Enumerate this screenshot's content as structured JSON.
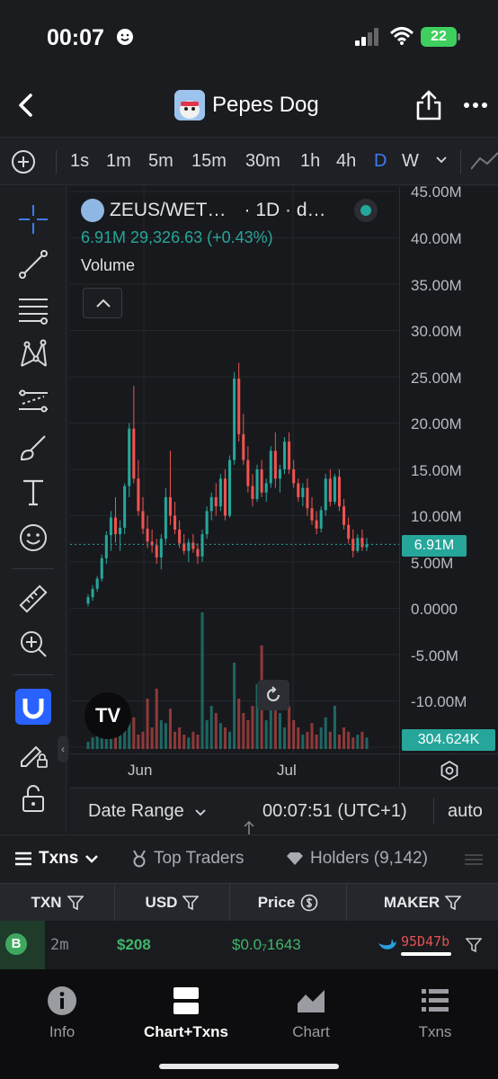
{
  "status_bar": {
    "time": "00:07",
    "battery": "22"
  },
  "nav": {
    "title": "Pepes Dog"
  },
  "timeframes": [
    "1s",
    "1m",
    "5m",
    "15m",
    "30m",
    "1h",
    "4h",
    "D",
    "W"
  ],
  "active_timeframe": "D",
  "legend": {
    "pair": "ZEUS/WET…",
    "resolution": "· 1D · d…",
    "stats": "6.91M  29,326.63 (+0.43%)",
    "indicator": "Volume"
  },
  "y_axis": {
    "ticks": [
      "45.00M",
      "40.00M",
      "35.00M",
      "30.00M",
      "25.00M",
      "20.00M",
      "15.00M",
      "10.00M",
      "5.00M",
      "0.0000",
      "-5.00M",
      "-10.00M"
    ],
    "current_price_label": "6.91M",
    "volume_label": "304.624K"
  },
  "x_axis": {
    "ticks": [
      "Jun",
      "Jul"
    ]
  },
  "chart_data": {
    "type": "candlestick",
    "y_unit": "market value",
    "ylim": [
      -15000000,
      45000000
    ],
    "current_value": 6910000,
    "candles_ohlc_millions": [
      [
        0.5,
        1.5,
        0.2,
        1.2
      ],
      [
        1.2,
        2.5,
        0.8,
        2.1
      ],
      [
        2.1,
        3.5,
        1.8,
        3.2
      ],
      [
        3.2,
        5.8,
        2.9,
        5.4
      ],
      [
        5.4,
        8.3,
        4.8,
        7.9
      ],
      [
        7.9,
        10.5,
        6.2,
        9.8
      ],
      [
        9.8,
        12.0,
        7.1,
        8.0
      ],
      [
        8.0,
        9.5,
        6.2,
        8.7
      ],
      [
        8.7,
        13.5,
        8.0,
        13.2
      ],
      [
        13.2,
        20.0,
        12.0,
        19.4
      ],
      [
        19.4,
        24.0,
        13.5,
        14.0
      ],
      [
        14.0,
        16.0,
        10.0,
        10.5
      ],
      [
        10.5,
        12.0,
        8.0,
        8.6
      ],
      [
        8.6,
        10.0,
        6.5,
        7.2
      ],
      [
        7.2,
        8.5,
        6.0,
        6.8
      ],
      [
        6.8,
        7.5,
        4.8,
        5.5
      ],
      [
        5.5,
        8.0,
        4.2,
        7.5
      ],
      [
        7.5,
        13.0,
        7.0,
        12.0
      ],
      [
        12.0,
        17.0,
        9.0,
        10.0
      ],
      [
        10.0,
        11.5,
        8.0,
        8.5
      ],
      [
        8.5,
        9.5,
        6.5,
        7.0
      ],
      [
        7.0,
        8.0,
        5.8,
        6.2
      ],
      [
        6.2,
        7.5,
        5.0,
        7.1
      ],
      [
        7.1,
        8.0,
        6.0,
        6.4
      ],
      [
        6.4,
        7.0,
        4.8,
        5.6
      ],
      [
        5.6,
        8.5,
        5.0,
        8.0
      ],
      [
        8.0,
        11.0,
        7.5,
        10.5
      ],
      [
        10.5,
        12.5,
        9.5,
        12.0
      ],
      [
        12.0,
        13.5,
        10.0,
        11.0
      ],
      [
        11.0,
        14.5,
        10.5,
        14.0
      ],
      [
        14.0,
        15.0,
        9.5,
        10.0
      ],
      [
        10.0,
        16.5,
        9.8,
        16.0
      ],
      [
        16.0,
        25.5,
        15.5,
        24.8
      ],
      [
        24.8,
        26.5,
        18.0,
        18.8
      ],
      [
        18.8,
        21.0,
        15.5,
        16.0
      ],
      [
        16.0,
        17.5,
        12.5,
        13.2
      ],
      [
        13.2,
        14.5,
        11.0,
        11.8
      ],
      [
        11.8,
        15.5,
        11.5,
        15.0
      ],
      [
        15.0,
        16.0,
        12.0,
        12.5
      ],
      [
        12.5,
        14.0,
        11.5,
        13.5
      ],
      [
        13.5,
        17.5,
        13.0,
        17.0
      ],
      [
        17.0,
        19.0,
        13.0,
        14.0
      ],
      [
        14.0,
        15.5,
        12.5,
        15.0
      ],
      [
        15.0,
        18.5,
        14.5,
        18.0
      ],
      [
        18.0,
        19.0,
        14.5,
        15.0
      ],
      [
        15.0,
        16.0,
        13.0,
        13.5
      ],
      [
        13.5,
        14.0,
        11.5,
        12.0
      ],
      [
        12.0,
        13.5,
        11.0,
        13.0
      ],
      [
        13.0,
        14.0,
        10.0,
        10.8
      ],
      [
        10.8,
        12.0,
        9.0,
        9.5
      ],
      [
        9.5,
        10.5,
        8.0,
        8.6
      ],
      [
        8.6,
        11.0,
        8.2,
        10.6
      ],
      [
        10.6,
        14.5,
        10.0,
        14.0
      ],
      [
        14.0,
        15.0,
        11.0,
        11.5
      ],
      [
        11.5,
        14.5,
        11.2,
        14.2
      ],
      [
        14.2,
        15.0,
        10.5,
        11.0
      ],
      [
        11.0,
        11.8,
        8.5,
        9.0
      ],
      [
        9.0,
        9.8,
        7.0,
        7.5
      ],
      [
        7.5,
        8.5,
        5.5,
        6.2
      ],
      [
        6.2,
        8.0,
        6.0,
        7.6
      ],
      [
        7.6,
        8.5,
        6.2,
        6.6
      ],
      [
        6.6,
        7.6,
        6.2,
        6.91
      ]
    ],
    "volume_series_relative": [
      0.05,
      0.08,
      0.12,
      0.1,
      0.2,
      0.15,
      0.3,
      0.12,
      0.18,
      0.25,
      0.22,
      0.1,
      0.12,
      0.35,
      0.15,
      0.42,
      0.2,
      0.18,
      0.28,
      0.12,
      0.15,
      0.1,
      0.08,
      0.12,
      0.1,
      0.95,
      0.2,
      0.3,
      0.25,
      0.18,
      0.15,
      0.12,
      0.6,
      0.35,
      0.25,
      0.2,
      0.3,
      0.45,
      0.72,
      0.2,
      0.28,
      0.4,
      0.25,
      0.15,
      0.3,
      0.2,
      0.15,
      0.1,
      0.12,
      0.18,
      0.1,
      0.15,
      0.22,
      0.12,
      0.3,
      0.1,
      0.15,
      0.12,
      0.08,
      0.1,
      0.12,
      0.08
    ]
  },
  "bottom_strip": {
    "date_range": "Date Range",
    "clock": "00:07:51 (UTC+1)",
    "auto": "auto"
  },
  "tabs": [
    {
      "label": "Txns"
    },
    {
      "label": "Top Traders"
    },
    {
      "label": "Holders (9,142)"
    }
  ],
  "table": {
    "headers": [
      "TXN",
      "USD",
      "Price",
      "MAKER"
    ],
    "rows": [
      {
        "type": "B",
        "age": "2m",
        "usd": "$208",
        "price": "$0.0₇1643",
        "maker": "95D47b"
      }
    ]
  },
  "bottom_nav": [
    {
      "label": "Info"
    },
    {
      "label": "Chart+Txns"
    },
    {
      "label": "Chart"
    },
    {
      "label": "Txns"
    }
  ]
}
